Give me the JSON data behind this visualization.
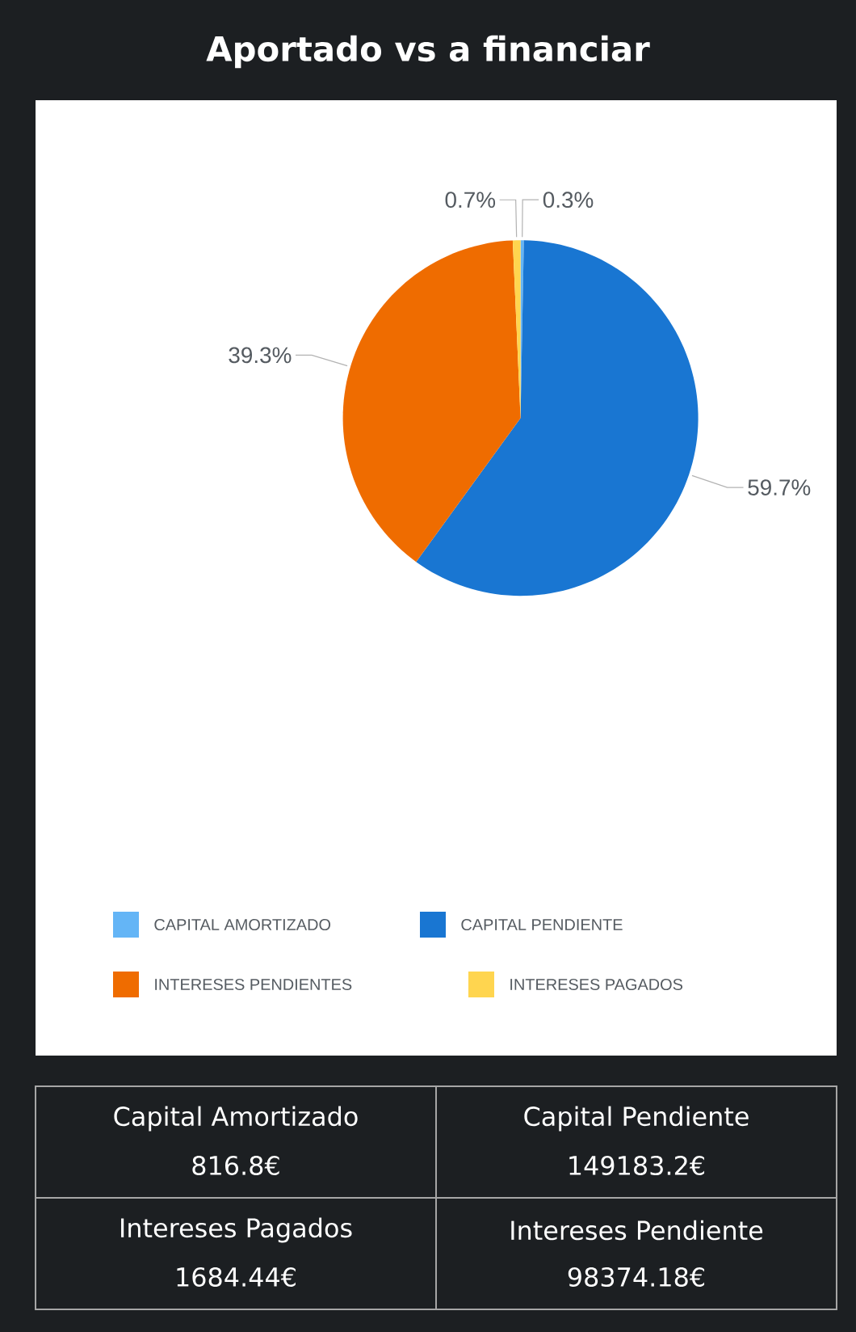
{
  "chart_data": {
    "type": "pie",
    "title": "Aportado vs a financiar",
    "categories": [
      "CAPITAL AMORTIZADO",
      "CAPITAL PENDIENTE",
      "INTERESES PENDIENTES",
      "INTERESES PAGADOS"
    ],
    "values": [
      0.3,
      59.7,
      39.3,
      0.7
    ],
    "value_labels": [
      "0.3%",
      "59.7%",
      "39.3%",
      "0.7%"
    ],
    "colors": [
      "#64b5f6",
      "#1976d2",
      "#ef6c00",
      "#ffd54f"
    ],
    "legend": "bottom",
    "annotations": [
      "Capital Amortizado",
      "816.8€",
      "Capital Pendiente",
      "149183.2€",
      "Intereses Pagados",
      "1684.44€",
      "Intereses Pendiente",
      "98374.18€"
    ]
  }
}
